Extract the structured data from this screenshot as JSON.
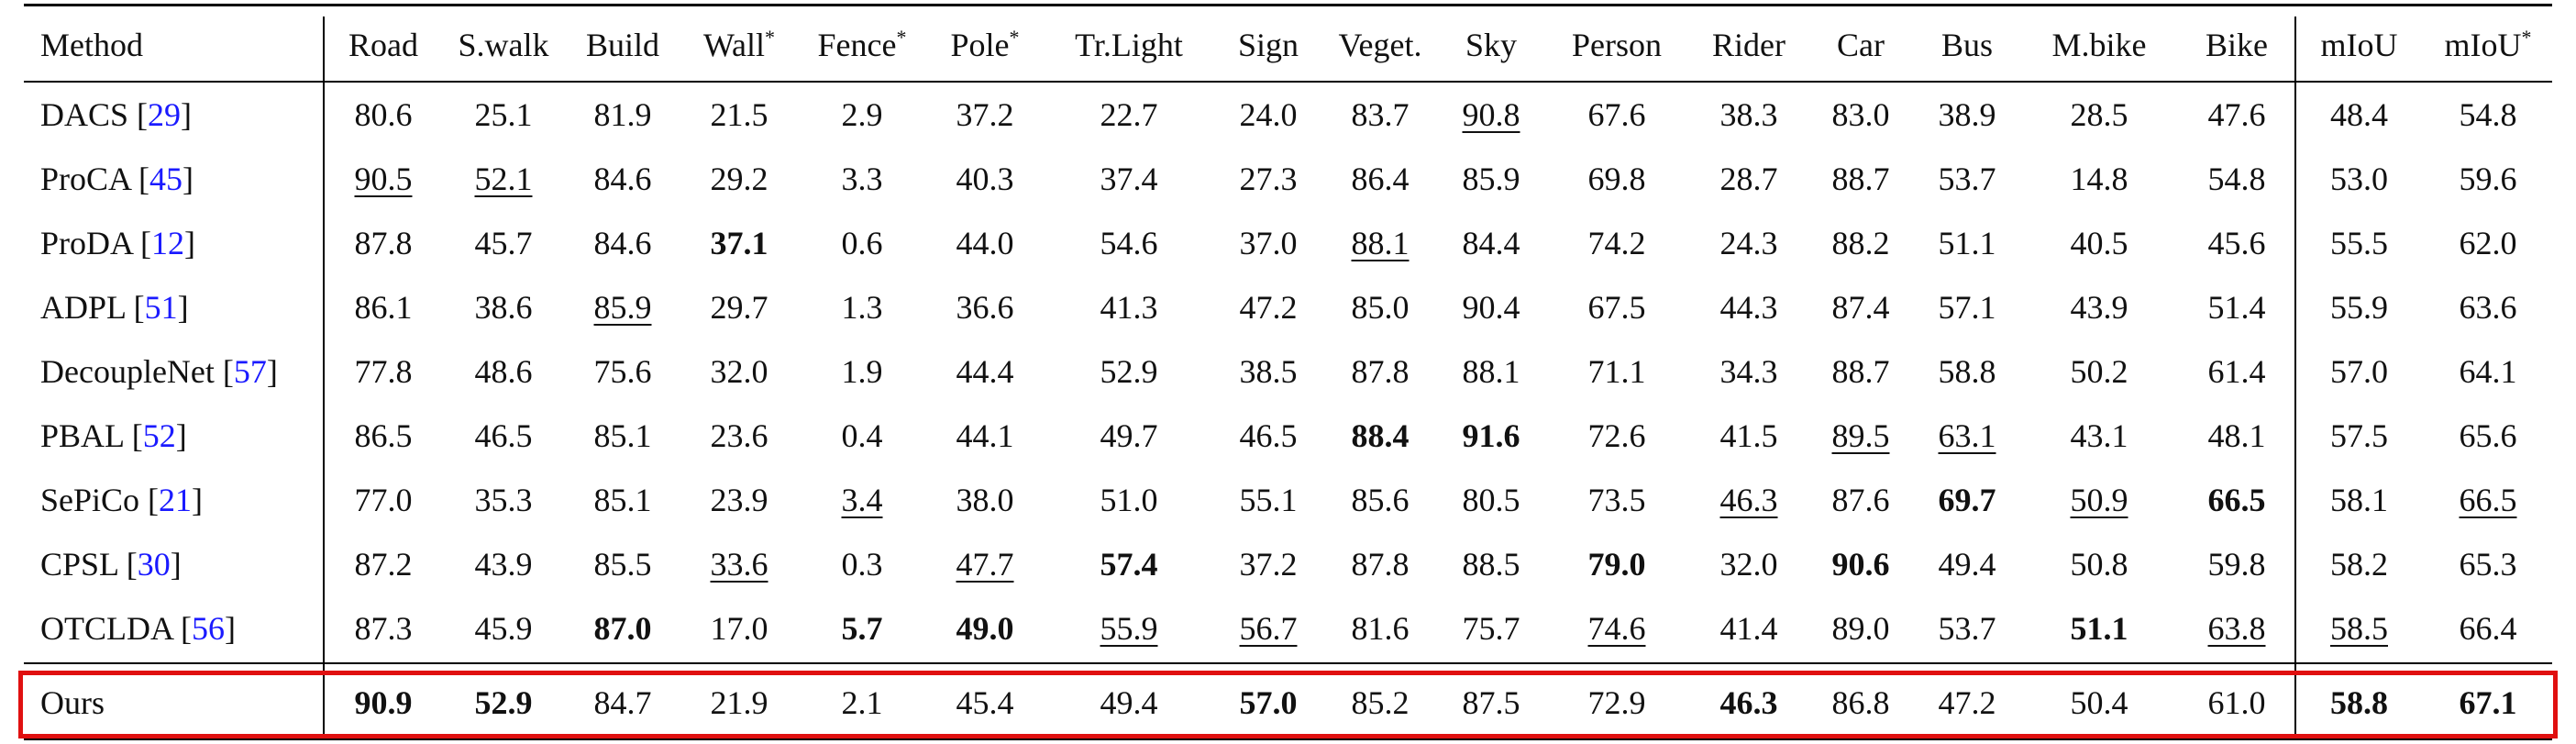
{
  "table": {
    "headers": [
      "Method",
      "Road",
      "S.walk",
      "Build",
      "Wall*",
      "Fence*",
      "Pole*",
      "Tr.Light",
      "Sign",
      "Veget.",
      "Sky",
      "Person",
      "Rider",
      "Car",
      "Bus",
      "M.bike",
      "Bike",
      "mIoU",
      "mIoU*"
    ],
    "rows": [
      {
        "name": "DACS",
        "ref": "29",
        "cells": [
          {
            "v": "80.6"
          },
          {
            "v": "25.1"
          },
          {
            "v": "81.9"
          },
          {
            "v": "21.5"
          },
          {
            "v": "2.9"
          },
          {
            "v": "37.2"
          },
          {
            "v": "22.7"
          },
          {
            "v": "24.0"
          },
          {
            "v": "83.7"
          },
          {
            "v": "90.8",
            "u": true
          },
          {
            "v": "67.6"
          },
          {
            "v": "38.3"
          },
          {
            "v": "83.0"
          },
          {
            "v": "38.9"
          },
          {
            "v": "28.5"
          },
          {
            "v": "47.6"
          },
          {
            "v": "48.4"
          },
          {
            "v": "54.8"
          }
        ]
      },
      {
        "name": "ProCA",
        "ref": "45",
        "cells": [
          {
            "v": "90.5",
            "u": true
          },
          {
            "v": "52.1",
            "u": true
          },
          {
            "v": "84.6"
          },
          {
            "v": "29.2"
          },
          {
            "v": "3.3"
          },
          {
            "v": "40.3"
          },
          {
            "v": "37.4"
          },
          {
            "v": "27.3"
          },
          {
            "v": "86.4"
          },
          {
            "v": "85.9"
          },
          {
            "v": "69.8"
          },
          {
            "v": "28.7"
          },
          {
            "v": "88.7"
          },
          {
            "v": "53.7"
          },
          {
            "v": "14.8"
          },
          {
            "v": "54.8"
          },
          {
            "v": "53.0"
          },
          {
            "v": "59.6"
          }
        ]
      },
      {
        "name": "ProDA",
        "ref": "12",
        "cells": [
          {
            "v": "87.8"
          },
          {
            "v": "45.7"
          },
          {
            "v": "84.6"
          },
          {
            "v": "37.1",
            "b": true
          },
          {
            "v": "0.6"
          },
          {
            "v": "44.0"
          },
          {
            "v": "54.6"
          },
          {
            "v": "37.0"
          },
          {
            "v": "88.1",
            "u": true
          },
          {
            "v": "84.4"
          },
          {
            "v": "74.2"
          },
          {
            "v": "24.3"
          },
          {
            "v": "88.2"
          },
          {
            "v": "51.1"
          },
          {
            "v": "40.5"
          },
          {
            "v": "45.6"
          },
          {
            "v": "55.5"
          },
          {
            "v": "62.0"
          }
        ]
      },
      {
        "name": "ADPL",
        "ref": "51",
        "cells": [
          {
            "v": "86.1"
          },
          {
            "v": "38.6"
          },
          {
            "v": "85.9",
            "u": true
          },
          {
            "v": "29.7"
          },
          {
            "v": "1.3"
          },
          {
            "v": "36.6"
          },
          {
            "v": "41.3"
          },
          {
            "v": "47.2"
          },
          {
            "v": "85.0"
          },
          {
            "v": "90.4"
          },
          {
            "v": "67.5"
          },
          {
            "v": "44.3"
          },
          {
            "v": "87.4"
          },
          {
            "v": "57.1"
          },
          {
            "v": "43.9"
          },
          {
            "v": "51.4"
          },
          {
            "v": "55.9"
          },
          {
            "v": "63.6"
          }
        ]
      },
      {
        "name": "DecoupleNet",
        "ref": "57",
        "cells": [
          {
            "v": "77.8"
          },
          {
            "v": "48.6"
          },
          {
            "v": "75.6"
          },
          {
            "v": "32.0"
          },
          {
            "v": "1.9"
          },
          {
            "v": "44.4"
          },
          {
            "v": "52.9"
          },
          {
            "v": "38.5"
          },
          {
            "v": "87.8"
          },
          {
            "v": "88.1"
          },
          {
            "v": "71.1"
          },
          {
            "v": "34.3"
          },
          {
            "v": "88.7"
          },
          {
            "v": "58.8"
          },
          {
            "v": "50.2"
          },
          {
            "v": "61.4"
          },
          {
            "v": "57.0"
          },
          {
            "v": "64.1"
          }
        ]
      },
      {
        "name": "PBAL",
        "ref": "52",
        "cells": [
          {
            "v": "86.5"
          },
          {
            "v": "46.5"
          },
          {
            "v": "85.1"
          },
          {
            "v": "23.6"
          },
          {
            "v": "0.4"
          },
          {
            "v": "44.1"
          },
          {
            "v": "49.7"
          },
          {
            "v": "46.5"
          },
          {
            "v": "88.4",
            "b": true
          },
          {
            "v": "91.6",
            "b": true
          },
          {
            "v": "72.6"
          },
          {
            "v": "41.5"
          },
          {
            "v": "89.5",
            "u": true
          },
          {
            "v": "63.1",
            "u": true
          },
          {
            "v": "43.1"
          },
          {
            "v": "48.1"
          },
          {
            "v": "57.5"
          },
          {
            "v": "65.6"
          }
        ]
      },
      {
        "name": "SePiCo",
        "ref": "21",
        "cells": [
          {
            "v": "77.0"
          },
          {
            "v": "35.3"
          },
          {
            "v": "85.1"
          },
          {
            "v": "23.9"
          },
          {
            "v": "3.4",
            "u": true
          },
          {
            "v": "38.0"
          },
          {
            "v": "51.0"
          },
          {
            "v": "55.1"
          },
          {
            "v": "85.6"
          },
          {
            "v": "80.5"
          },
          {
            "v": "73.5"
          },
          {
            "v": "46.3",
            "u": true
          },
          {
            "v": "87.6"
          },
          {
            "v": "69.7",
            "b": true
          },
          {
            "v": "50.9",
            "u": true
          },
          {
            "v": "66.5",
            "b": true
          },
          {
            "v": "58.1"
          },
          {
            "v": "66.5",
            "u": true
          }
        ]
      },
      {
        "name": "CPSL",
        "ref": "30",
        "cells": [
          {
            "v": "87.2"
          },
          {
            "v": "43.9"
          },
          {
            "v": "85.5"
          },
          {
            "v": "33.6",
            "u": true
          },
          {
            "v": "0.3"
          },
          {
            "v": "47.7",
            "u": true
          },
          {
            "v": "57.4",
            "b": true
          },
          {
            "v": "37.2"
          },
          {
            "v": "87.8"
          },
          {
            "v": "88.5"
          },
          {
            "v": "79.0",
            "b": true
          },
          {
            "v": "32.0"
          },
          {
            "v": "90.6",
            "b": true
          },
          {
            "v": "49.4"
          },
          {
            "v": "50.8"
          },
          {
            "v": "59.8"
          },
          {
            "v": "58.2"
          },
          {
            "v": "65.3"
          }
        ]
      },
      {
        "name": "OTCLDA",
        "ref": "56",
        "cells": [
          {
            "v": "87.3"
          },
          {
            "v": "45.9"
          },
          {
            "v": "87.0",
            "b": true
          },
          {
            "v": "17.0"
          },
          {
            "v": "5.7",
            "b": true
          },
          {
            "v": "49.0",
            "b": true
          },
          {
            "v": "55.9",
            "u": true
          },
          {
            "v": "56.7",
            "u": true
          },
          {
            "v": "81.6"
          },
          {
            "v": "75.7"
          },
          {
            "v": "74.6",
            "u": true
          },
          {
            "v": "41.4"
          },
          {
            "v": "89.0"
          },
          {
            "v": "53.7"
          },
          {
            "v": "51.1",
            "b": true
          },
          {
            "v": "63.8",
            "u": true
          },
          {
            "v": "58.5",
            "u": true
          },
          {
            "v": "66.4"
          }
        ]
      },
      {
        "name": "Ours",
        "ref": "",
        "cells": [
          {
            "v": "90.9",
            "b": true
          },
          {
            "v": "52.9",
            "b": true
          },
          {
            "v": "84.7"
          },
          {
            "v": "21.9"
          },
          {
            "v": "2.1"
          },
          {
            "v": "45.4"
          },
          {
            "v": "49.4"
          },
          {
            "v": "57.0",
            "b": true
          },
          {
            "v": "85.2"
          },
          {
            "v": "87.5"
          },
          {
            "v": "72.9"
          },
          {
            "v": "46.3",
            "b": true
          },
          {
            "v": "86.8"
          },
          {
            "v": "47.2"
          },
          {
            "v": "50.4"
          },
          {
            "v": "61.0"
          },
          {
            "v": "58.8",
            "b": true
          },
          {
            "v": "67.1",
            "b": true
          }
        ]
      }
    ]
  },
  "colors": {
    "highlight_border": "#e01010",
    "reference_link": "#1a1aff"
  }
}
